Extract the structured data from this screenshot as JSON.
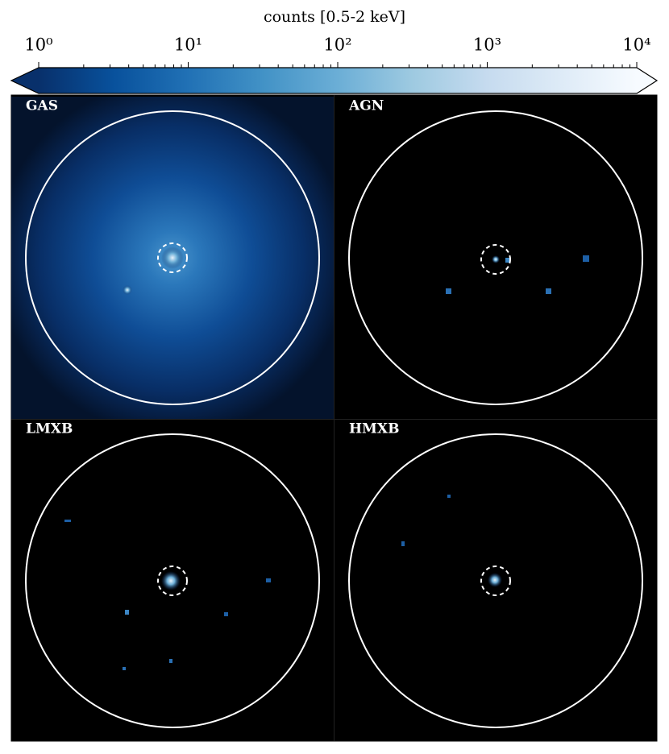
{
  "colorbar": {
    "label": "counts [0.5-2 keV]",
    "lim": [
      1,
      10000
    ],
    "scale": "log",
    "ticks": [
      {
        "value": 1,
        "label": "10⁰"
      },
      {
        "value": 10,
        "label": "10¹"
      },
      {
        "value": 100,
        "label": "10²"
      },
      {
        "value": 1000,
        "label": "10³"
      },
      {
        "value": 10000,
        "label": "10⁴"
      }
    ],
    "colors": [
      "#08306b",
      "#08519c",
      "#2171b5",
      "#4292c6",
      "#6baed6",
      "#9ecae1",
      "#c6dbef",
      "#deebf7",
      "#f7fbff"
    ]
  },
  "panels": [
    {
      "label": "GAS"
    },
    {
      "label": "AGN"
    },
    {
      "label": "LMXB"
    },
    {
      "label": "HMXB"
    }
  ]
}
